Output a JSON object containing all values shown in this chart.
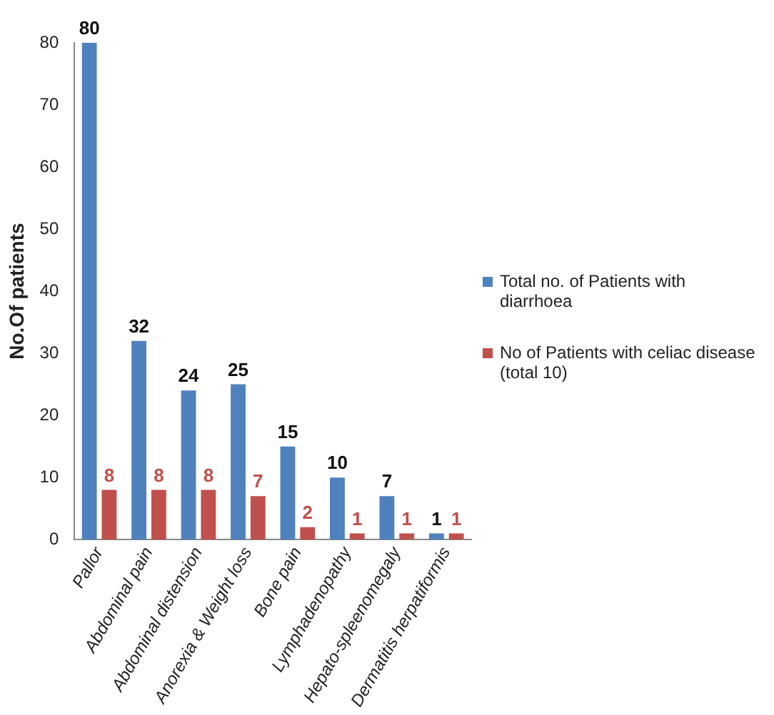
{
  "chart_data": {
    "type": "bar",
    "ylabel": "No.Of patients",
    "categories": [
      "Pallor",
      "Abdominal pain",
      "Abdominal distension",
      "Anorexia & Weight loss",
      "Bone pain",
      "Lymphadenopathy",
      "Hepato-spleenomegaly",
      "Dermatitis herpatiformis"
    ],
    "series": [
      {
        "name": "Total no. of Patients with diarrhoea",
        "color": "#4f81bd",
        "values": [
          80,
          32,
          24,
          25,
          15,
          10,
          7,
          1
        ]
      },
      {
        "name": "No of Patients with celiac disease (total 10)",
        "color": "#c0504d",
        "values": [
          8,
          8,
          8,
          7,
          2,
          1,
          1,
          1
        ]
      }
    ],
    "ylim": [
      0,
      80
    ],
    "yticks": [
      0,
      10,
      20,
      30,
      40,
      50,
      60,
      70,
      80
    ],
    "grid": false,
    "legend": "right",
    "data_labels": true
  }
}
